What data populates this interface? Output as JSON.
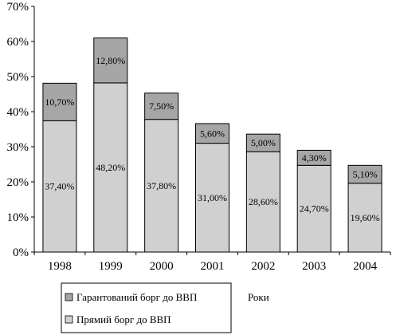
{
  "chart_data": {
    "type": "bar",
    "stacked": true,
    "categories": [
      "1998",
      "1999",
      "2000",
      "2001",
      "2002",
      "2003",
      "2004"
    ],
    "series": [
      {
        "name": "Прямий борг до ВВП",
        "values": [
          37.4,
          48.2,
          37.8,
          31.0,
          28.6,
          24.7,
          19.6
        ],
        "labels": [
          "37,40%",
          "48,20%",
          "37,80%",
          "31,00%",
          "28,60%",
          "24,70%",
          "19,60%"
        ],
        "color": "#d0d0d0"
      },
      {
        "name": "Гарантований борг до ВВП",
        "values": [
          10.7,
          12.8,
          7.5,
          5.6,
          5.0,
          4.3,
          5.1
        ],
        "labels": [
          "10,70%",
          "12,80%",
          "7,50%",
          "5,60%",
          "5,00%",
          "4,30%",
          "5,10%"
        ],
        "color": "#a6a6a6"
      }
    ],
    "ylim": [
      0,
      70
    ],
    "yticks": [
      0,
      10,
      20,
      30,
      40,
      50,
      60,
      70
    ],
    "ytick_labels": [
      "0%",
      "10%",
      "20%",
      "30%",
      "40%",
      "50%",
      "60%",
      "70%"
    ],
    "xlabel": "Роки",
    "grid": false,
    "legend": {
      "placement": "bottom-left",
      "entries": [
        "Гарантований борг до ВВП",
        "Прямий борг до ВВП"
      ]
    }
  }
}
